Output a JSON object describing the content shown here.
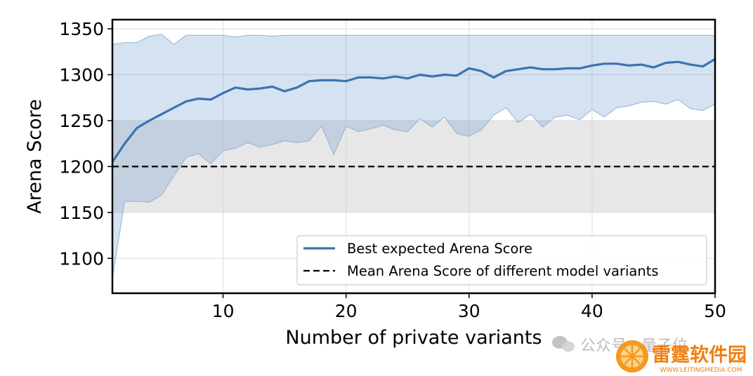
{
  "chart_data": {
    "type": "line",
    "title": "",
    "xlabel": "Number of private variants",
    "ylabel": "Arena Score",
    "xlim": [
      1,
      50
    ],
    "ylim": [
      1062,
      1360
    ],
    "xticks": [
      10,
      20,
      30,
      40,
      50
    ],
    "yticks": [
      1100,
      1150,
      1200,
      1250,
      1300,
      1350
    ],
    "grid": true,
    "legend_position": "lower-right",
    "series": [
      {
        "name": "Best expected Arena Score",
        "color": "#3d72b0",
        "style": "solid",
        "x": [
          1,
          2,
          3,
          4,
          5,
          6,
          7,
          8,
          9,
          10,
          11,
          12,
          13,
          14,
          15,
          16,
          17,
          18,
          19,
          20,
          21,
          22,
          23,
          24,
          25,
          26,
          27,
          28,
          29,
          30,
          31,
          32,
          33,
          34,
          35,
          36,
          37,
          38,
          39,
          40,
          41,
          42,
          43,
          44,
          45,
          46,
          47,
          48,
          49,
          50
        ],
        "values": [
          1205,
          1225,
          1242,
          1250,
          1257,
          1264,
          1271,
          1274,
          1273,
          1280,
          1286,
          1284,
          1285,
          1287,
          1282,
          1286,
          1293,
          1294,
          1294,
          1293,
          1297,
          1297,
          1296,
          1298,
          1296,
          1300,
          1298,
          1300,
          1299,
          1307,
          1304,
          1297,
          1304,
          1306,
          1308,
          1306,
          1306,
          1307,
          1307,
          1310,
          1312,
          1312,
          1310,
          1311,
          1308,
          1313,
          1314,
          1311,
          1309,
          1317
        ],
        "band_upper": [
          1333,
          1335,
          1335,
          1342,
          1344,
          1333,
          1343,
          1343,
          1343,
          1343,
          1341,
          1343,
          1343,
          1342,
          1343,
          1343,
          1343,
          1343,
          1343,
          1343,
          1343,
          1343,
          1343,
          1343,
          1343,
          1343,
          1343,
          1343,
          1343,
          1343,
          1343,
          1343,
          1343,
          1343,
          1343,
          1343,
          1343,
          1343,
          1343,
          1343,
          1343,
          1343,
          1343,
          1343,
          1343,
          1343,
          1343,
          1343,
          1343,
          1343
        ],
        "band_lower": [
          1078,
          1162,
          1162,
          1161,
          1169,
          1190,
          1210,
          1214,
          1203,
          1217,
          1220,
          1226,
          1221,
          1224,
          1228,
          1226,
          1228,
          1244,
          1213,
          1244,
          1238,
          1241,
          1245,
          1240,
          1238,
          1252,
          1243,
          1254,
          1236,
          1233,
          1240,
          1256,
          1264,
          1248,
          1257,
          1243,
          1254,
          1256,
          1251,
          1262,
          1254,
          1264,
          1266,
          1270,
          1271,
          1268,
          1273,
          1263,
          1261,
          1268
        ]
      },
      {
        "name": "Mean Arena Score of different model variants",
        "color": "#000000",
        "style": "dashed",
        "value": 1200,
        "band": [
          1150,
          1250
        ]
      }
    ]
  },
  "watermark": {
    "wechat_text": "公众号 · 量子位",
    "brand_name": "雷霆软件园",
    "brand_url": "WWW.LEITINGMEDIA.COM"
  }
}
